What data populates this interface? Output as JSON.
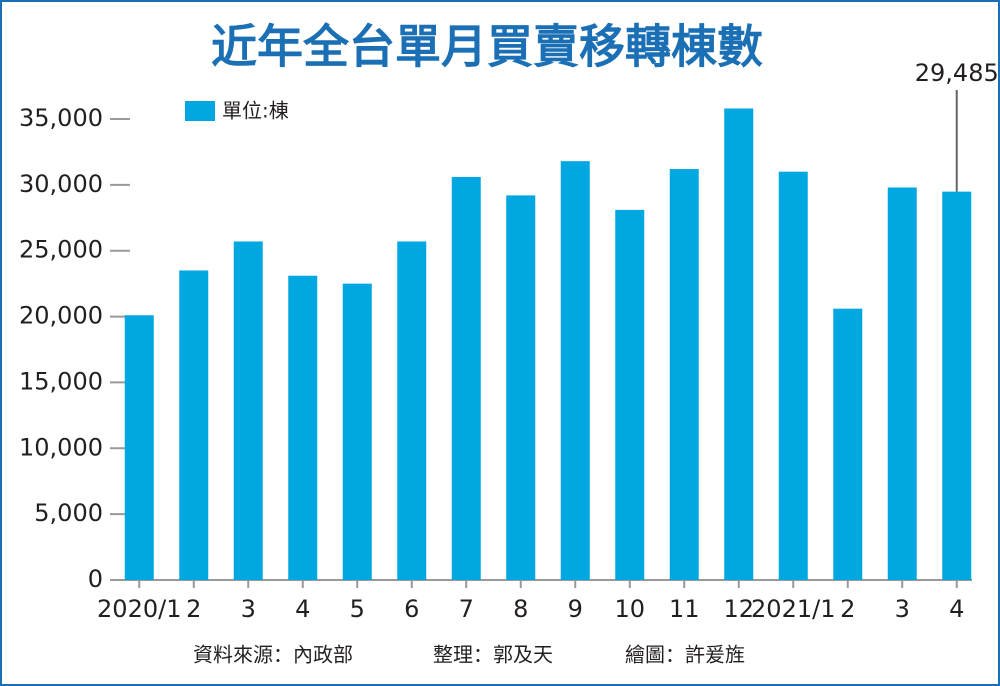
{
  "chart_data": {
    "type": "bar",
    "title": "近年全台單月買賣移轉棟數",
    "categories": [
      "2020/1",
      "2",
      "3",
      "4",
      "5",
      "6",
      "7",
      "8",
      "9",
      "10",
      "11",
      "12",
      "2021/1",
      "2",
      "3",
      "4"
    ],
    "series": [
      {
        "name": "單位:棟",
        "color": "#00a7e1",
        "values": [
          20100,
          23500,
          25700,
          23100,
          22500,
          25700,
          30600,
          29200,
          31800,
          28100,
          31200,
          35800,
          31000,
          20600,
          29800,
          29485
        ],
        "value_labels": [
          null,
          null,
          null,
          null,
          null,
          null,
          null,
          null,
          null,
          null,
          null,
          null,
          null,
          null,
          null,
          "29,485"
        ]
      }
    ],
    "ylim": [
      0,
      35000
    ],
    "yticks": [
      0,
      {
        "value": 5000,
        "label": "5,000"
      },
      {
        "value": 10000,
        "label": "10,000"
      },
      {
        "value": 15000,
        "label": "15,000"
      },
      {
        "value": 20000,
        "label": "20,000"
      },
      {
        "value": 25000,
        "label": "25,000"
      },
      {
        "value": 30000,
        "label": "30,000"
      },
      {
        "value": 35000,
        "label": "35,000"
      }
    ],
    "grid": false,
    "source": [
      "資料來源：內政部",
      "整理：郭及天",
      "繪圖：許爰旌"
    ]
  }
}
